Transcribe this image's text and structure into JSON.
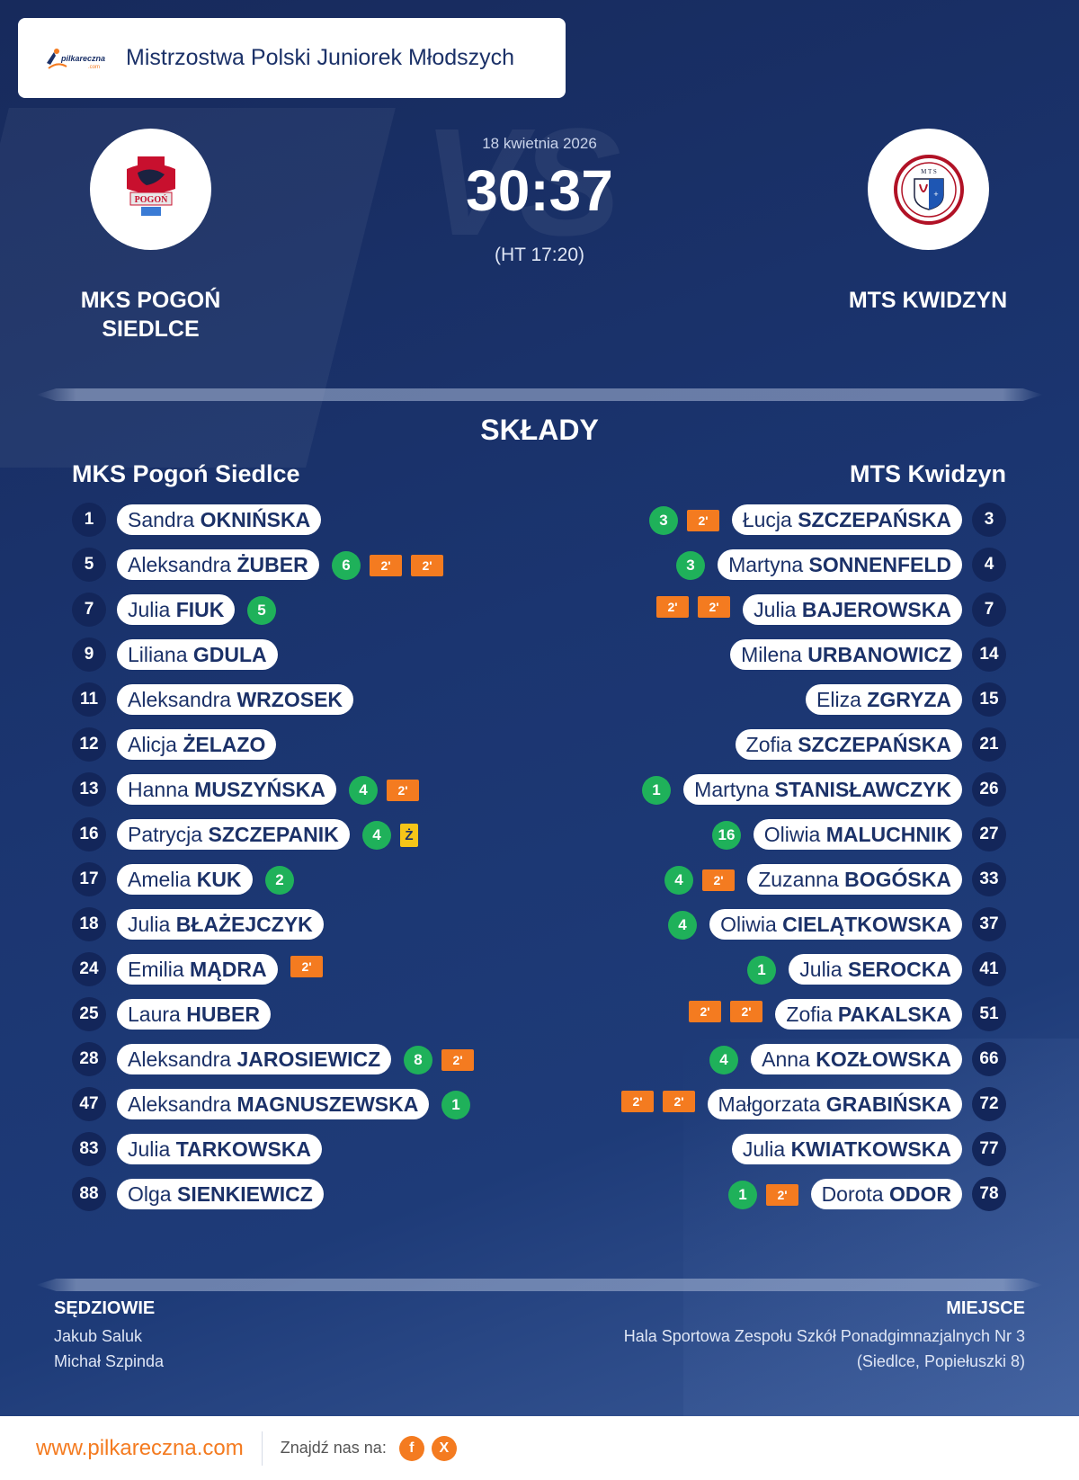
{
  "competition": "Mistrzostwa Polski Juniorek Młodszych",
  "logo_text": "pilkareczna",
  "logo_sub": ".com",
  "match": {
    "date": "18 kwietnia 2026",
    "score": "30:37",
    "half_time": "(HT 17:20)"
  },
  "home": {
    "name_line1": "MKS POGOŃ",
    "name_line2": "SIEDLCE",
    "roster_title": "MKS Pogoń Siedlce",
    "logo_text": "POGOŃ",
    "players": [
      {
        "number": "1",
        "first": "Sandra",
        "last": "OKNIŃSKA",
        "goals": null,
        "cards": []
      },
      {
        "number": "5",
        "first": "Aleksandra",
        "last": "ŻUBER",
        "goals": "6",
        "cards": [
          "2'",
          "2'"
        ]
      },
      {
        "number": "7",
        "first": "Julia",
        "last": "FIUK",
        "goals": "5",
        "cards": []
      },
      {
        "number": "9",
        "first": "Liliana",
        "last": "GDULA",
        "goals": null,
        "cards": []
      },
      {
        "number": "11",
        "first": "Aleksandra",
        "last": "WRZOSEK",
        "goals": null,
        "cards": []
      },
      {
        "number": "12",
        "first": "Alicja",
        "last": "ŻELAZO",
        "goals": null,
        "cards": []
      },
      {
        "number": "13",
        "first": "Hanna",
        "last": "MUSZYŃSKA",
        "goals": "4",
        "cards": [
          "2'"
        ]
      },
      {
        "number": "16",
        "first": "Patrycja",
        "last": "SZCZEPANIK",
        "goals": "4",
        "cards": [
          "Ż"
        ]
      },
      {
        "number": "17",
        "first": "Amelia",
        "last": "KUK",
        "goals": "2",
        "cards": []
      },
      {
        "number": "18",
        "first": "Julia",
        "last": "BŁAŻEJCZYK",
        "goals": null,
        "cards": []
      },
      {
        "number": "24",
        "first": "Emilia",
        "last": "MĄDRA",
        "goals": null,
        "cards": [
          "2'"
        ]
      },
      {
        "number": "25",
        "first": "Laura",
        "last": "HUBER",
        "goals": null,
        "cards": []
      },
      {
        "number": "28",
        "first": "Aleksandra",
        "last": "JAROSIEWICZ",
        "goals": "8",
        "cards": [
          "2'"
        ]
      },
      {
        "number": "47",
        "first": "Aleksandra",
        "last": "MAGNUSZEWSKA",
        "goals": "1",
        "cards": []
      },
      {
        "number": "83",
        "first": "Julia",
        "last": "TARKOWSKA",
        "goals": null,
        "cards": []
      },
      {
        "number": "88",
        "first": "Olga",
        "last": "SIENKIEWICZ",
        "goals": null,
        "cards": []
      }
    ]
  },
  "away": {
    "name_line1": "MTS KWIDZYN",
    "roster_title": "MTS Kwidzyn",
    "logo_text": "M T S",
    "players": [
      {
        "number": "3",
        "first": "Łucja",
        "last": "SZCZEPAŃSKA",
        "goals": "3",
        "cards": [
          "2'"
        ]
      },
      {
        "number": "4",
        "first": "Martyna",
        "last": "SONNENFELD",
        "goals": "3",
        "cards": []
      },
      {
        "number": "7",
        "first": "Julia",
        "last": "BAJEROWSKA",
        "goals": null,
        "cards": [
          "2'",
          "2'"
        ]
      },
      {
        "number": "14",
        "first": "Milena",
        "last": "URBANOWICZ",
        "goals": null,
        "cards": []
      },
      {
        "number": "15",
        "first": "Eliza",
        "last": "ZGRYZA",
        "goals": null,
        "cards": []
      },
      {
        "number": "21",
        "first": "Zofia",
        "last": "SZCZEPAŃSKA",
        "goals": null,
        "cards": []
      },
      {
        "number": "26",
        "first": "Martyna",
        "last": "STANISŁAWCZYK",
        "goals": "1",
        "cards": []
      },
      {
        "number": "27",
        "first": "Oliwia",
        "last": "MALUCHNIK",
        "goals": "16",
        "cards": []
      },
      {
        "number": "33",
        "first": "Zuzanna",
        "last": "BOGÓSKA",
        "goals": "4",
        "cards": [
          "2'"
        ]
      },
      {
        "number": "37",
        "first": "Oliwia",
        "last": "CIELĄTKOWSKA",
        "goals": "4",
        "cards": []
      },
      {
        "number": "41",
        "first": "Julia",
        "last": "SEROCKA",
        "goals": "1",
        "cards": []
      },
      {
        "number": "51",
        "first": "Zofia",
        "last": "PAKALSKA",
        "goals": null,
        "cards": [
          "2'",
          "2'"
        ]
      },
      {
        "number": "66",
        "first": "Anna",
        "last": "KOZŁOWSKA",
        "goals": "4",
        "cards": []
      },
      {
        "number": "72",
        "first": "Małgorzata",
        "last": "GRABIŃSKA",
        "goals": null,
        "cards": [
          "2'",
          "2'"
        ]
      },
      {
        "number": "77",
        "first": "Julia",
        "last": "KWIATKOWSKA",
        "goals": null,
        "cards": []
      },
      {
        "number": "78",
        "first": "Dorota",
        "last": "ODOR",
        "goals": "1",
        "cards": [
          "2'"
        ]
      }
    ]
  },
  "section_title": "SKŁADY",
  "referees": {
    "label": "SĘDZIOWIE",
    "names": [
      "Jakub Saluk",
      "Michał Szpinda"
    ]
  },
  "venue": {
    "label": "MIEJSCE",
    "line1": "Hala Sportowa Zespołu Szkół Ponadgimnazjalnych Nr 3",
    "line2": "(Siedlce, Popiełuszki 8)"
  },
  "footer": {
    "site": "www.pilkareczna.com",
    "find_us": "Znajdź nas na:",
    "social": [
      {
        "icon": "facebook-icon",
        "glyph": "f"
      },
      {
        "icon": "x-icon",
        "glyph": "X"
      }
    ]
  },
  "colors": {
    "goal": "#1fb15a",
    "suspension": "#f47b20",
    "yellow_card": "#f5c518",
    "accent": "#f47b20",
    "navy": "#1b3168"
  }
}
